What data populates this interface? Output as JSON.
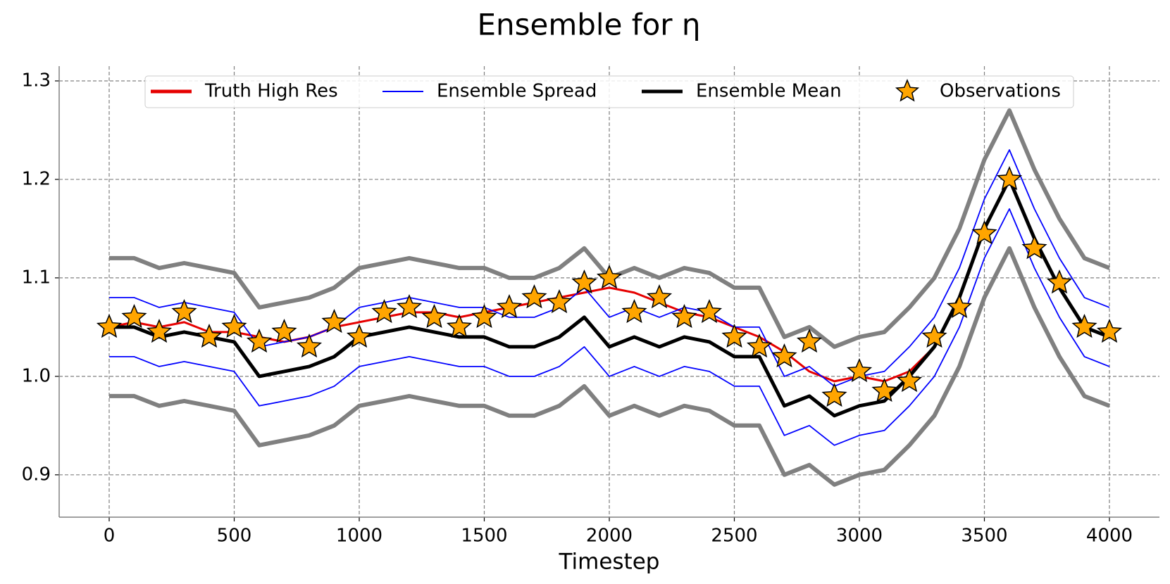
{
  "chart_data": {
    "type": "line",
    "title": "Ensemble for η",
    "xlabel": "Timestep",
    "x": [
      0,
      100,
      200,
      300,
      400,
      500,
      600,
      700,
      800,
      900,
      1000,
      1100,
      1200,
      1300,
      1400,
      1500,
      1600,
      1700,
      1800,
      1900,
      2000,
      2100,
      2200,
      2300,
      2400,
      2500,
      2600,
      2700,
      2800,
      2900,
      3000,
      3100,
      3200,
      3300,
      3400,
      3500,
      3600,
      3700,
      3800,
      3900,
      4000
    ],
    "members": {
      "color": "#808080",
      "lower": [
        0.98,
        0.98,
        0.97,
        0.975,
        0.97,
        0.965,
        0.93,
        0.935,
        0.94,
        0.95,
        0.97,
        0.975,
        0.98,
        0.975,
        0.97,
        0.97,
        0.96,
        0.96,
        0.97,
        0.99,
        0.96,
        0.97,
        0.96,
        0.97,
        0.965,
        0.95,
        0.95,
        0.9,
        0.91,
        0.89,
        0.9,
        0.905,
        0.93,
        0.96,
        1.01,
        1.08,
        1.13,
        1.07,
        1.02,
        0.98,
        0.97
      ],
      "upper": [
        1.12,
        1.12,
        1.11,
        1.115,
        1.11,
        1.105,
        1.07,
        1.075,
        1.08,
        1.09,
        1.11,
        1.115,
        1.12,
        1.115,
        1.11,
        1.11,
        1.1,
        1.1,
        1.11,
        1.13,
        1.1,
        1.11,
        1.1,
        1.11,
        1.105,
        1.09,
        1.09,
        1.04,
        1.05,
        1.03,
        1.04,
        1.045,
        1.07,
        1.1,
        1.15,
        1.22,
        1.27,
        1.21,
        1.16,
        1.12,
        1.11
      ]
    },
    "series": [
      {
        "name": "Truth High Res",
        "color": "#e60000",
        "values": [
          1.05,
          1.055,
          1.05,
          1.055,
          1.045,
          1.045,
          1.04,
          1.035,
          1.04,
          1.05,
          1.055,
          1.06,
          1.065,
          1.065,
          1.06,
          1.065,
          1.07,
          1.075,
          1.08,
          1.085,
          1.09,
          1.085,
          1.075,
          1.065,
          1.06,
          1.05,
          1.04,
          1.025,
          1.005,
          0.995,
          1.0,
          0.995,
          1.005,
          1.03,
          1.08,
          1.15,
          1.2,
          1.14,
          1.09,
          1.05,
          1.04
        ]
      },
      {
        "name": "Ensemble Spread",
        "color": "#0000ff",
        "lower": [
          1.02,
          1.02,
          1.01,
          1.015,
          1.01,
          1.005,
          0.97,
          0.975,
          0.98,
          0.99,
          1.01,
          1.015,
          1.02,
          1.015,
          1.01,
          1.01,
          1.0,
          1.0,
          1.01,
          1.03,
          1.0,
          1.01,
          1.0,
          1.01,
          1.005,
          0.99,
          0.99,
          0.94,
          0.95,
          0.93,
          0.94,
          0.945,
          0.97,
          1.0,
          1.05,
          1.12,
          1.17,
          1.11,
          1.06,
          1.02,
          1.01
        ],
        "upper": [
          1.08,
          1.08,
          1.07,
          1.075,
          1.07,
          1.065,
          1.03,
          1.035,
          1.04,
          1.05,
          1.07,
          1.075,
          1.08,
          1.075,
          1.07,
          1.07,
          1.06,
          1.06,
          1.07,
          1.09,
          1.06,
          1.07,
          1.06,
          1.07,
          1.065,
          1.05,
          1.05,
          1.0,
          1.01,
          0.99,
          1.0,
          1.005,
          1.03,
          1.06,
          1.11,
          1.18,
          1.23,
          1.17,
          1.12,
          1.08,
          1.07
        ]
      },
      {
        "name": "Ensemble Mean",
        "color": "#000000",
        "values": [
          1.05,
          1.05,
          1.04,
          1.045,
          1.04,
          1.035,
          1.0,
          1.005,
          1.01,
          1.02,
          1.04,
          1.045,
          1.05,
          1.045,
          1.04,
          1.04,
          1.03,
          1.03,
          1.04,
          1.06,
          1.03,
          1.04,
          1.03,
          1.04,
          1.035,
          1.02,
          1.02,
          0.97,
          0.98,
          0.96,
          0.97,
          0.975,
          1.0,
          1.03,
          1.08,
          1.15,
          1.2,
          1.14,
          1.09,
          1.05,
          1.04
        ]
      }
    ],
    "observations": {
      "name": "Observations",
      "color": "#ffa500",
      "values": [
        1.05,
        1.06,
        1.045,
        1.065,
        1.04,
        1.05,
        1.035,
        1.045,
        1.03,
        1.055,
        1.04,
        1.065,
        1.07,
        1.06,
        1.05,
        1.06,
        1.07,
        1.08,
        1.075,
        1.095,
        1.1,
        1.065,
        1.08,
        1.06,
        1.065,
        1.04,
        1.03,
        1.02,
        1.035,
        0.98,
        1.005,
        0.985,
        0.995,
        1.04,
        1.07,
        1.145,
        1.2,
        1.13,
        1.095,
        1.05,
        1.045
      ]
    },
    "xlim": [
      -200,
      4200
    ],
    "xticks": [
      0,
      500,
      1000,
      1500,
      2000,
      2500,
      3000,
      3500,
      4000
    ],
    "ylim": [
      0.857,
      1.315
    ],
    "yticks": [
      0.9,
      {
        "value": 1.0,
        "label": "1.0"
      },
      1.1,
      1.2,
      1.3
    ],
    "grid": true,
    "legend": "upper center"
  }
}
